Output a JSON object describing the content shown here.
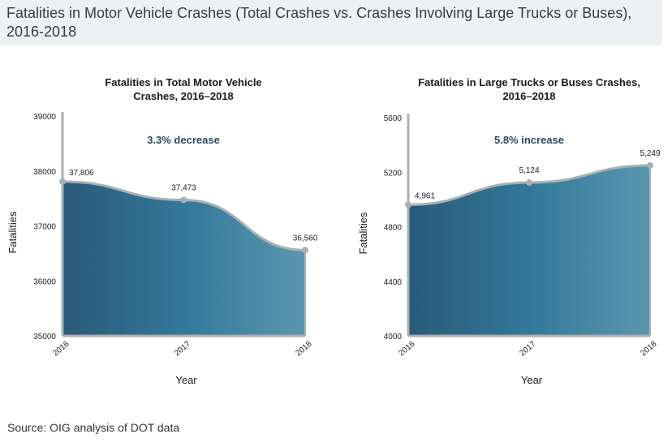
{
  "header": {
    "title": "Fatalities in Motor Vehicle Crashes (Total Crashes vs. Crashes Involving Large Trucks or Buses), 2016-2018"
  },
  "footer": {
    "source": "Source: OIG analysis of DOT data"
  },
  "colors": {
    "area_dark": "#2a5a78",
    "area_mid": "#33789a",
    "area_light": "#5a97ae",
    "line": "#a9b0b4",
    "annotation": "#264a63"
  },
  "chart_data": [
    {
      "type": "area",
      "title": "Fatalities in Total Motor Vehicle Crashes, 2016–2018",
      "title_lines": [
        "Fatalities in Total Motor Vehicle",
        "Crashes, 2016–2018"
      ],
      "annotation": "3.3% decrease",
      "xlabel": "Year",
      "ylabel": "Fatalities",
      "x": [
        "2016",
        "2017",
        "2018"
      ],
      "values": [
        37806,
        37473,
        36560
      ],
      "value_labels": [
        "37,806",
        "37,473",
        "36,560"
      ],
      "yticks": [
        "35000",
        "36000",
        "37000",
        "38000",
        "39000"
      ],
      "ylim": [
        35000,
        39000
      ],
      "grid": false
    },
    {
      "type": "area",
      "title": "Fatalities in Large Trucks or Buses Crashes, 2016–2018",
      "title_lines": [
        "Fatalities in Large Trucks or Buses Crashes,",
        "2016–2018"
      ],
      "annotation": "5.8% increase",
      "xlabel": "Year",
      "ylabel": "Fatalities",
      "x": [
        "2016",
        "2017",
        "2018"
      ],
      "values": [
        4961,
        5124,
        5249
      ],
      "value_labels": [
        "4,961",
        "5,124",
        "5,249"
      ],
      "yticks": [
        "4000",
        "4400",
        "4800",
        "5200",
        "5600"
      ],
      "ylim": [
        4000,
        5600
      ],
      "grid": false
    }
  ]
}
